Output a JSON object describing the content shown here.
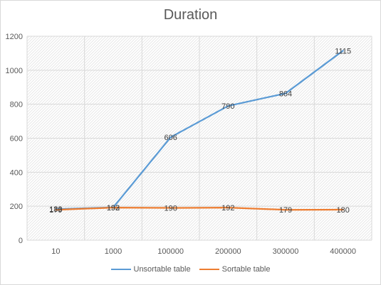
{
  "chart_data": {
    "type": "line",
    "title": "Duration",
    "categories": [
      "10",
      "1000",
      "100000",
      "200000",
      "300000",
      "400000"
    ],
    "ylim": [
      0,
      1200
    ],
    "yticks": [
      0,
      200,
      400,
      600,
      800,
      1000,
      1200
    ],
    "grid": true,
    "legend_position": "bottom",
    "series": [
      {
        "name": "Unsortable table",
        "color": "#5b9bd5",
        "values": [
          183,
          193,
          606,
          790,
          864,
          1115
        ]
      },
      {
        "name": "Sortable table",
        "color": "#ed7d31",
        "values": [
          179,
          192,
          190,
          192,
          179,
          180
        ]
      }
    ]
  }
}
